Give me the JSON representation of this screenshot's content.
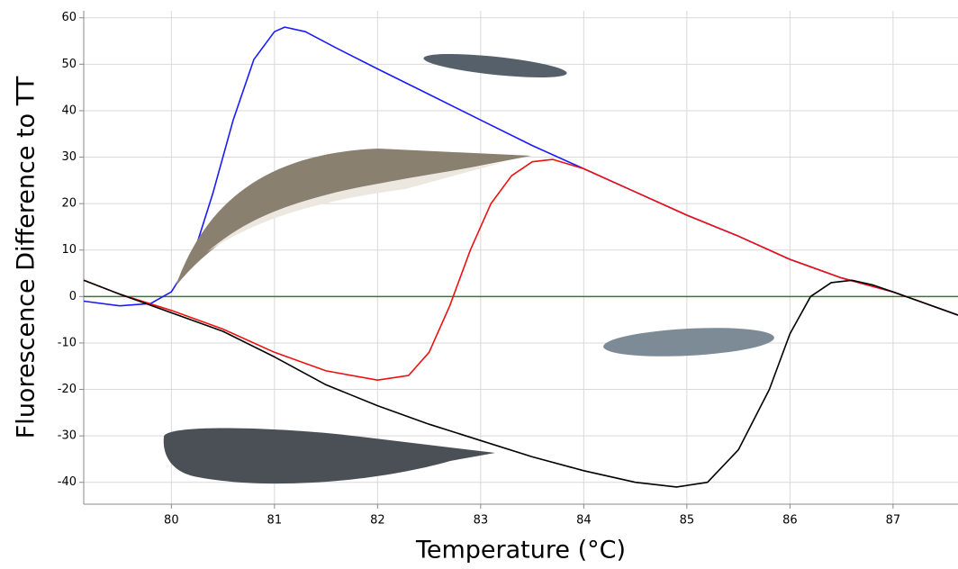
{
  "chart_data": {
    "type": "line",
    "xlabel": "Temperature (°C)",
    "ylabel": "Fluorescence Difference to TT",
    "xlim": [
      79.15,
      87.63
    ],
    "ylim": [
      -44.7,
      61.5
    ],
    "xticks": [
      80,
      81,
      82,
      83,
      84,
      85,
      86,
      87
    ],
    "yticks": [
      -40,
      -30,
      -20,
      -10,
      0,
      10,
      20,
      30,
      40,
      50,
      60
    ],
    "grid": true,
    "hline": {
      "value": 0,
      "color": "#2e7d32"
    },
    "series": [
      {
        "color": "#1a1aff",
        "x": [
          79.15,
          79.5,
          79.8,
          80.0,
          80.2,
          80.4,
          80.6,
          80.8,
          81.0,
          81.1,
          81.3,
          81.6,
          82.0,
          82.5,
          83.0,
          83.5,
          84.0,
          84.5,
          85.0,
          85.5,
          86.0,
          86.5,
          87.0,
          87.63
        ],
        "values": [
          -1,
          -2,
          -1.5,
          1,
          8,
          22,
          38,
          51,
          57,
          58,
          57,
          53.5,
          49,
          43.5,
          38,
          32.5,
          27.5,
          22.5,
          17.5,
          13,
          8,
          4,
          1,
          -4
        ]
      },
      {
        "color": "#ee1111",
        "x": [
          79.15,
          79.5,
          80.0,
          80.5,
          81.0,
          81.5,
          82.0,
          82.3,
          82.5,
          82.7,
          82.9,
          83.1,
          83.3,
          83.5,
          83.7,
          84.0,
          84.5,
          85.0,
          85.5,
          86.0,
          86.5,
          87.0,
          87.63
        ],
        "values": [
          3.5,
          0.5,
          -3,
          -7,
          -12,
          -16,
          -18,
          -17,
          -12,
          -2,
          10,
          20,
          26,
          29,
          29.5,
          27.5,
          22.5,
          17.5,
          13,
          8,
          4,
          1,
          -4
        ]
      },
      {
        "color": "#000000",
        "x": [
          79.15,
          79.5,
          80.0,
          80.5,
          81.0,
          81.5,
          82.0,
          82.5,
          83.0,
          83.5,
          84.0,
          84.5,
          84.9,
          85.2,
          85.5,
          85.8,
          86.0,
          86.2,
          86.4,
          86.6,
          86.8,
          87.0,
          87.63
        ],
        "values": [
          3.5,
          0.5,
          -3.5,
          -7.5,
          -13,
          -19,
          -23.5,
          -27.5,
          -31,
          -34.5,
          -37.5,
          -40,
          -41,
          -40,
          -33,
          -20,
          -8,
          0,
          3,
          3.5,
          2.5,
          1,
          -4
        ]
      }
    ]
  }
}
